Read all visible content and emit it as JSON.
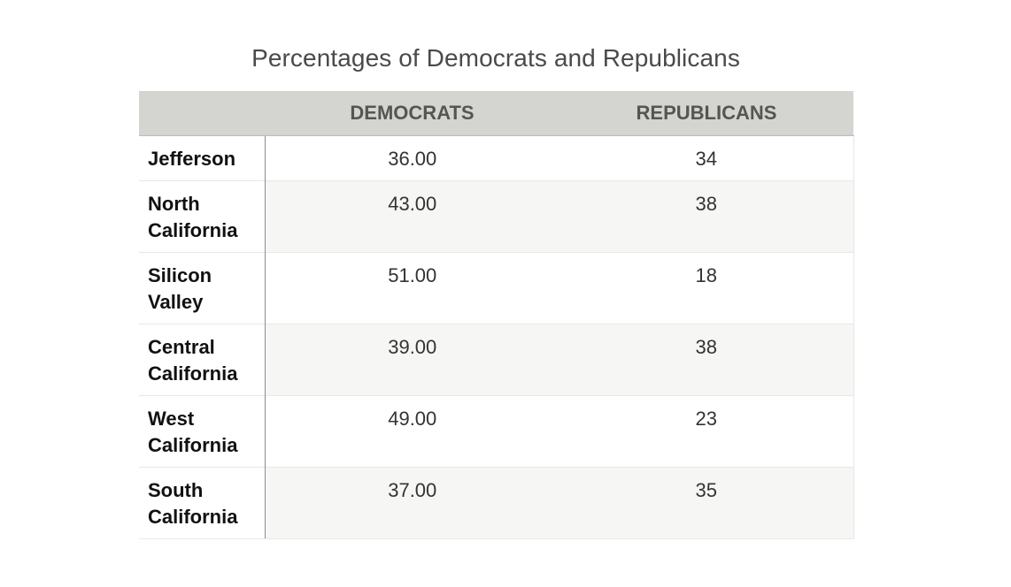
{
  "chart_data": {
    "type": "table",
    "title": "Percentages of Democrats and Republicans",
    "columns": [
      "",
      "DEMOCRATS",
      "REPUBLICANS"
    ],
    "rows": [
      {
        "name": "Jefferson",
        "democrats": "36.00",
        "republicans": "34"
      },
      {
        "name": "North California",
        "democrats": "43.00",
        "republicans": "38"
      },
      {
        "name": "Silicon Valley",
        "democrats": "51.00",
        "republicans": "18"
      },
      {
        "name": "Central California",
        "democrats": "39.00",
        "republicans": "38"
      },
      {
        "name": "West California",
        "democrats": "49.00",
        "republicans": "23"
      },
      {
        "name": "South California",
        "democrats": "37.00",
        "republicans": "35"
      }
    ],
    "header_color": "#d4d4d0",
    "stripe_color": "#f6f6f5"
  }
}
